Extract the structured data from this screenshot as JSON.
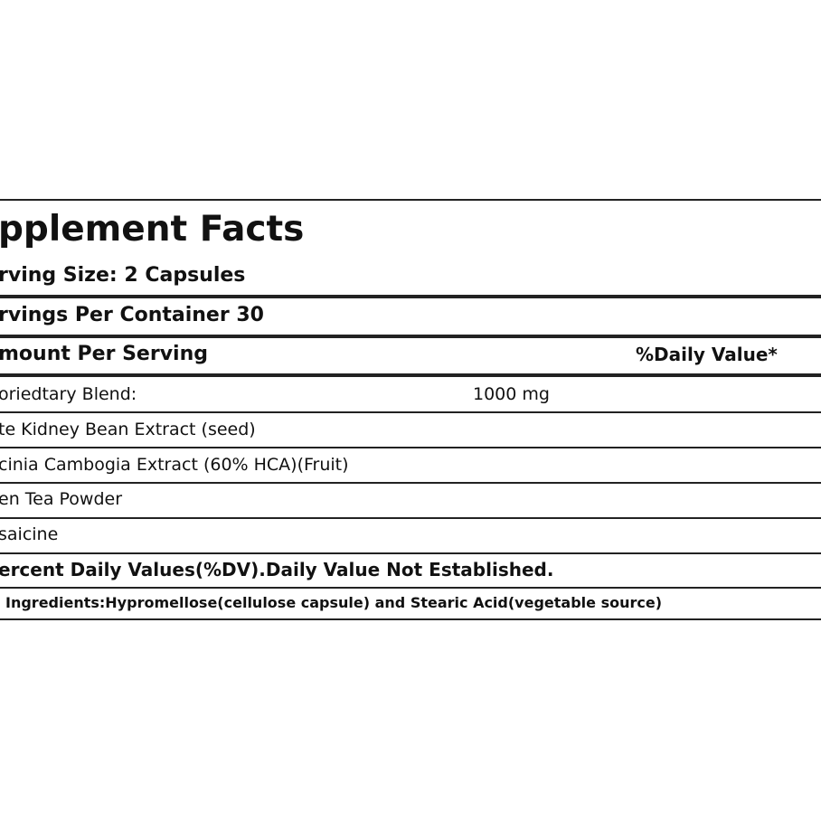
{
  "label": {
    "title": "pplement Facts",
    "serving_size": "rving Size: 2 Capsules",
    "servings_per_container": "rvings Per Container 30",
    "header": {
      "amount": "mount Per Serving",
      "daily_value": "%Daily Value*"
    },
    "blend": {
      "name": "oriedtary Blend:",
      "amount": "1000 mg"
    },
    "ingredients": [
      "te Kidney Bean Extract (seed)",
      "cinia Cambogia Extract (60% HCA)(Fruit)",
      "en Tea Powder",
      "saicine"
    ],
    "footnote": "ercent Daily Values(%DV).Daily Value Not Established.",
    "other_ingredients": "Ingredients:Hypromellose(cellulose capsule) and Stearic Acid(vegetable source)"
  }
}
